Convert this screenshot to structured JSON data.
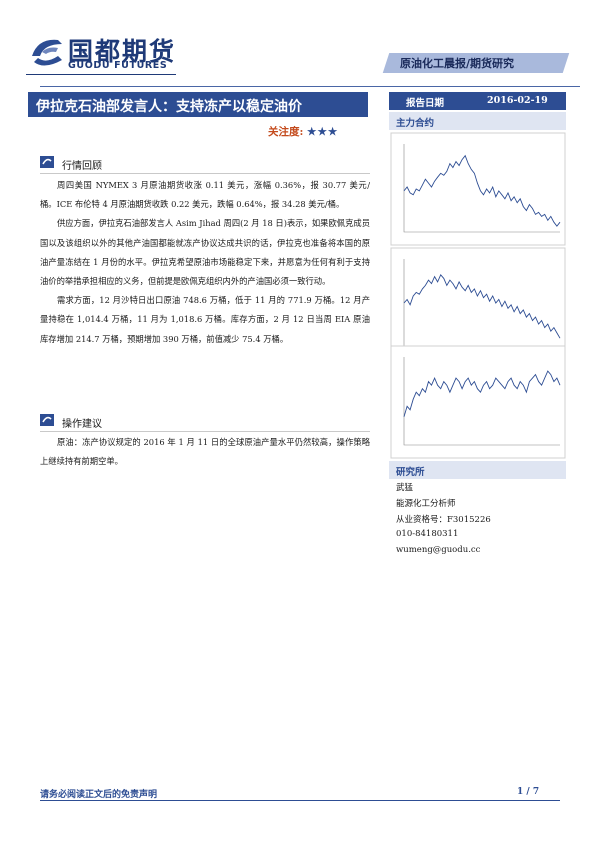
{
  "header": {
    "brand_cn": "国都期货",
    "brand_en": "GUODU FUTURES",
    "report_type": "原油化工晨报/期货研究"
  },
  "title": {
    "main": "伊拉克石油部发言人：支持冻产以稳定油价",
    "attention_label": "关注度:",
    "attention_stars": "★★★"
  },
  "sections": [
    {
      "title": "行情回顾",
      "paragraphs": [
        "周四美国 NYMEX 3 月原油期货收涨 0.11 美元，涨幅 0.36%，报 30.77 美元/桶。ICE 布伦特 4 月原油期货收跌 0.22 美元，跌幅 0.64%，报 34.28 美元/桶。",
        "供应方面，伊拉克石油部发言人 Asim Jihad 周四(2 月 18 日)表示，如果欧佩克成员国以及该组织以外的其他产油国都能就冻产协议达成共识的话，伊拉克也准备将本国的原油产量冻结在 1 月份的水平。伊拉克希望原油市场能稳定下来，并愿意为任何有利于支持油价的举措承担相应的义务，但前提是欧佩克组织内外的产油国必须一致行动。",
        "需求方面，12 月沙特日出口原油 748.6 万桶，低于 11 月的 771.9 万桶。12 月产量持稳在 1,014.4 万桶，11 月为 1,018.6 万桶。库存方面，2 月 12 日当周 EIA 原油库存增加 214.7 万桶，预期增加 390 万桶，前值减少 75.4 万桶。"
      ]
    },
    {
      "title": "操作建议",
      "paragraphs": [
        "原油：冻产协议规定的 2016 年 1 月 11 日的全球原油产量水平仍然较高，操作策略上继续持有前期空单。"
      ]
    }
  ],
  "sidebar": {
    "date_label": "报告日期",
    "date": "2016-02-19",
    "contracts_heading": "主力合约",
    "research_heading": "研究所",
    "analyst": {
      "name": "武猛",
      "role": "能源化工分析师",
      "license": "从业资格号：F3015226",
      "phone": "010-84180311",
      "email": "wumeng@guodu.cc"
    }
  },
  "footer": {
    "disclaimer": "请务必阅读正文后的免责声明",
    "page": "1 / 7"
  },
  "chart_data": [
    {
      "type": "line",
      "title": "",
      "series": [
        {
          "values": [
            46,
            48,
            45,
            44,
            47,
            46,
            49,
            52,
            50,
            48,
            51,
            53,
            55,
            54,
            56,
            60,
            58,
            61,
            59,
            62,
            64,
            60,
            57,
            55,
            50,
            46,
            44,
            47,
            45,
            48,
            43,
            46,
            44,
            42,
            45,
            41,
            43,
            40,
            42,
            38,
            36,
            39,
            37,
            34,
            35,
            33,
            34,
            31,
            33,
            30,
            28,
            30
          ]
        }
      ],
      "ylim": [
        25,
        70
      ]
    },
    {
      "type": "line",
      "title": "",
      "series": [
        {
          "values": [
            50,
            52,
            49,
            54,
            56,
            55,
            58,
            60,
            63,
            61,
            65,
            62,
            66,
            64,
            60,
            63,
            61,
            58,
            62,
            59,
            57,
            60,
            56,
            58,
            54,
            57,
            53,
            55,
            51,
            54,
            50,
            52,
            48,
            51,
            47,
            49,
            45,
            48,
            44,
            46,
            42,
            44,
            40,
            42,
            38,
            40,
            36,
            38,
            34,
            36,
            33,
            30
          ]
        }
      ],
      "ylim": [
        25,
        75
      ]
    },
    {
      "type": "line",
      "title": "",
      "series": [
        {
          "values": [
            88,
            91,
            90,
            93,
            95,
            94,
            96,
            95,
            98,
            97,
            99,
            97,
            96,
            98,
            97,
            95,
            97,
            99,
            98,
            96,
            98,
            99,
            97,
            98,
            96,
            95,
            97,
            98,
            96,
            97,
            99,
            98,
            97,
            96,
            98,
            99,
            97,
            96,
            98,
            97,
            95,
            98,
            99,
            100,
            98,
            97,
            99,
            101,
            100,
            98,
            99,
            97
          ]
        }
      ],
      "ylim": [
        80,
        105
      ]
    }
  ]
}
